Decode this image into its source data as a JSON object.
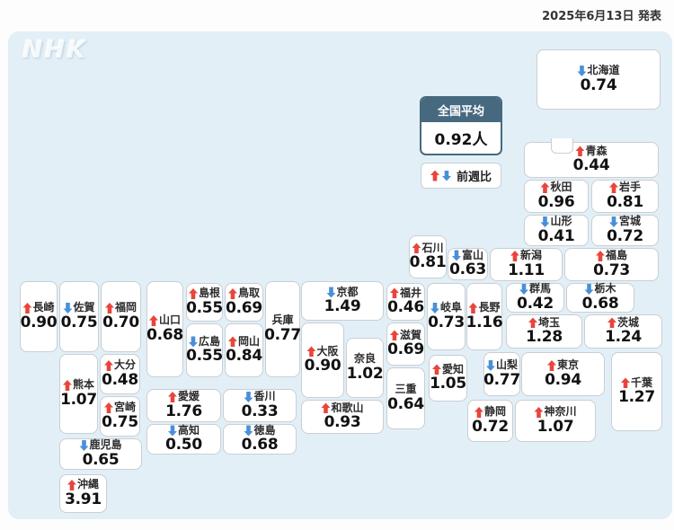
{
  "header": {
    "date_label": "2025年6月13日 発表"
  },
  "logo": {
    "text": "NHK"
  },
  "national_average": {
    "label": "全国平均",
    "value": "0.92人"
  },
  "legend": {
    "label": "前週比"
  },
  "colors": {
    "up_red": "#e8453c",
    "down_blue": "#4a90d8",
    "panel_blue": "#e2eff7",
    "avg_header": "#47697f"
  },
  "prefectures": [
    {
      "id": "hokkaido",
      "name": "北海道",
      "trend": "down",
      "value": "0.74"
    },
    {
      "id": "aomori",
      "name": "青森",
      "trend": "up",
      "value": "0.44"
    },
    {
      "id": "akita",
      "name": "秋田",
      "trend": "up",
      "value": "0.96"
    },
    {
      "id": "iwate",
      "name": "岩手",
      "trend": "up",
      "value": "0.81"
    },
    {
      "id": "yamagata",
      "name": "山形",
      "trend": "down",
      "value": "0.41"
    },
    {
      "id": "miyagi",
      "name": "宮城",
      "trend": "down",
      "value": "0.72"
    },
    {
      "id": "niigata",
      "name": "新潟",
      "trend": "up",
      "value": "1.11"
    },
    {
      "id": "fukushima",
      "name": "福島",
      "trend": "up",
      "value": "0.73"
    },
    {
      "id": "ishikawa",
      "name": "石川",
      "trend": "up",
      "value": "0.81"
    },
    {
      "id": "toyama",
      "name": "富山",
      "trend": "down",
      "value": "0.63"
    },
    {
      "id": "gunma",
      "name": "群馬",
      "trend": "down",
      "value": "0.42"
    },
    {
      "id": "tochigi",
      "name": "栃木",
      "trend": "down",
      "value": "0.68"
    },
    {
      "id": "saitama",
      "name": "埼玉",
      "trend": "up",
      "value": "1.28"
    },
    {
      "id": "ibaraki",
      "name": "茨城",
      "trend": "up",
      "value": "1.24"
    },
    {
      "id": "yamanashi",
      "name": "山梨",
      "trend": "down",
      "value": "0.77"
    },
    {
      "id": "tokyo",
      "name": "東京",
      "trend": "up",
      "value": "0.94"
    },
    {
      "id": "chiba",
      "name": "千葉",
      "trend": "up",
      "value": "1.27"
    },
    {
      "id": "shizuoka",
      "name": "静岡",
      "trend": "up",
      "value": "0.72"
    },
    {
      "id": "kanagawa",
      "name": "神奈川",
      "trend": "up",
      "value": "1.07"
    },
    {
      "id": "nagano",
      "name": "長野",
      "trend": "up",
      "value": "1.16"
    },
    {
      "id": "gifu",
      "name": "岐阜",
      "trend": "down",
      "value": "0.73"
    },
    {
      "id": "fukui",
      "name": "福井",
      "trend": "up",
      "value": "0.46"
    },
    {
      "id": "shiga",
      "name": "滋賀",
      "trend": "up",
      "value": "0.69"
    },
    {
      "id": "mie",
      "name": "三重",
      "trend": "none",
      "value": "0.64"
    },
    {
      "id": "kyoto",
      "name": "京都",
      "trend": "down",
      "value": "1.49"
    },
    {
      "id": "osaka",
      "name": "大阪",
      "trend": "up",
      "value": "0.90"
    },
    {
      "id": "nara",
      "name": "奈良",
      "trend": "none",
      "value": "1.02"
    },
    {
      "id": "wakayama",
      "name": "和歌山",
      "trend": "up",
      "value": "0.93"
    },
    {
      "id": "aichi",
      "name": "愛知",
      "trend": "up",
      "value": "1.05"
    },
    {
      "id": "hyogo",
      "name": "兵庫",
      "trend": "none",
      "value": "0.77"
    },
    {
      "id": "tottori",
      "name": "鳥取",
      "trend": "up",
      "value": "0.69"
    },
    {
      "id": "shimane",
      "name": "島根",
      "trend": "up",
      "value": "0.55"
    },
    {
      "id": "okayama",
      "name": "岡山",
      "trend": "up",
      "value": "0.84"
    },
    {
      "id": "hiroshima",
      "name": "広島",
      "trend": "down",
      "value": "0.55"
    },
    {
      "id": "yamaguchi",
      "name": "山口",
      "trend": "up",
      "value": "0.68"
    },
    {
      "id": "ehime",
      "name": "愛媛",
      "trend": "up",
      "value": "1.76"
    },
    {
      "id": "kagawa",
      "name": "香川",
      "trend": "down",
      "value": "0.33"
    },
    {
      "id": "kochi",
      "name": "高知",
      "trend": "down",
      "value": "0.50"
    },
    {
      "id": "tokushima",
      "name": "徳島",
      "trend": "down",
      "value": "0.68"
    },
    {
      "id": "fukuoka",
      "name": "福岡",
      "trend": "up",
      "value": "0.70"
    },
    {
      "id": "saga",
      "name": "佐賀",
      "trend": "down",
      "value": "0.75"
    },
    {
      "id": "nagasaki",
      "name": "長崎",
      "trend": "up",
      "value": "0.90"
    },
    {
      "id": "oita",
      "name": "大分",
      "trend": "up",
      "value": "0.48"
    },
    {
      "id": "kumamoto",
      "name": "熊本",
      "trend": "up",
      "value": "1.07"
    },
    {
      "id": "miyazaki",
      "name": "宮崎",
      "trend": "up",
      "value": "0.75"
    },
    {
      "id": "kagoshima",
      "name": "鹿児島",
      "trend": "down",
      "value": "0.65"
    },
    {
      "id": "okinawa",
      "name": "沖縄",
      "trend": "up",
      "value": "3.91"
    }
  ]
}
